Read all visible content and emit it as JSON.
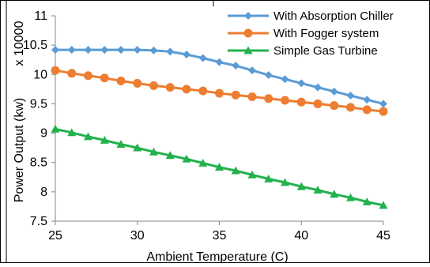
{
  "chart_data": {
    "type": "line",
    "title": "",
    "xlabel": "Ambient Temperature (C)",
    "ylabel": "Power Output (kw)",
    "y_multiplier_label": "x 10000",
    "xlim": [
      25,
      45
    ],
    "ylim": [
      7.5,
      11
    ],
    "xticks": [
      "25",
      "30",
      "35",
      "40",
      "45"
    ],
    "yticks": [
      "7.5",
      "8",
      "8.5",
      "9",
      "9.5",
      "10",
      "10.5",
      "11"
    ],
    "grid": false,
    "legend_position": "top-right",
    "x": [
      25,
      26,
      27,
      28,
      29,
      30,
      31,
      32,
      33,
      34,
      35,
      36,
      37,
      38,
      39,
      40,
      41,
      42,
      43,
      44,
      45
    ],
    "series": [
      {
        "name": "With Absorption Chiller",
        "color": "#5b9bd5",
        "marker": "diamond",
        "values": [
          10.42,
          10.42,
          10.42,
          10.42,
          10.42,
          10.42,
          10.41,
          10.39,
          10.34,
          10.28,
          10.21,
          10.15,
          10.07,
          9.99,
          9.92,
          9.85,
          9.78,
          9.71,
          9.64,
          9.57,
          9.5
        ]
      },
      {
        "name": "With Fogger system",
        "color": "#ed7d31",
        "marker": "circle",
        "values": [
          10.07,
          10.02,
          9.98,
          9.94,
          9.89,
          9.85,
          9.81,
          9.78,
          9.75,
          9.72,
          9.68,
          9.65,
          9.62,
          9.59,
          9.56,
          9.53,
          9.5,
          9.47,
          9.44,
          9.4,
          9.37
        ]
      },
      {
        "name": "Simple Gas Turbine",
        "color": "#22b14c",
        "marker": "triangle",
        "values": [
          9.07,
          9.01,
          8.94,
          8.88,
          8.81,
          8.75,
          8.68,
          8.62,
          8.56,
          8.49,
          8.42,
          8.36,
          8.29,
          8.22,
          8.16,
          8.09,
          8.03,
          7.96,
          7.9,
          7.83,
          7.77
        ]
      }
    ]
  }
}
